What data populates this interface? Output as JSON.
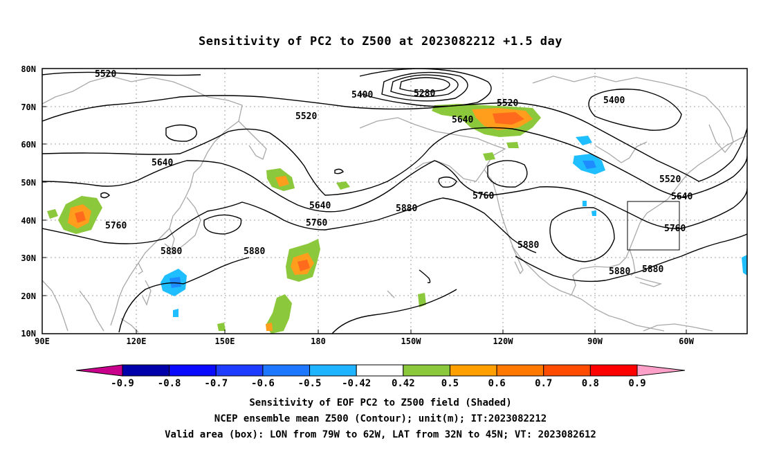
{
  "title": "Sensitivity of PC2 to Z500 at 2023082212 +1.5 day",
  "map": {
    "lat_ticks": [
      "80N",
      "70N",
      "60N",
      "50N",
      "40N",
      "30N",
      "20N",
      "10N"
    ],
    "lon_ticks": [
      "90E",
      "120E",
      "150E",
      "180",
      "150W",
      "120W",
      "90W",
      "60W"
    ],
    "contour_levels_shown": [
      "5280",
      "5400",
      "5520",
      "5640",
      "5760",
      "5880"
    ],
    "contour_labels": {
      "l5520a": "5520",
      "l5400a": "5400",
      "l5280": "5280",
      "l5520b": "5520",
      "l5520c": "5520",
      "l5400b": "5400",
      "l5640a": "5640",
      "l5640b": "5640",
      "l5760a": "5760",
      "l5640c": "5640",
      "l5760b": "5760",
      "l5880a": "5880",
      "l5760c": "5760",
      "l5520d": "5520",
      "l5640d": "5640",
      "l5760d": "5760",
      "l5880b": "5880",
      "l5880c": "5880",
      "l5880d": "5880",
      "l5880e": "5880",
      "l5880f": "5880"
    },
    "valid_box": {
      "lon_from": "79W",
      "lon_to": "62W",
      "lat_from": "32N",
      "lat_to": "45N"
    },
    "colors": {
      "land_outline": "#a8a8a8",
      "grid": "#a0a0a0",
      "contour": "#000000",
      "shade_pos_low": "#8cc83c",
      "shade_pos_mid": "#ff9e1c",
      "shade_pos_high": "#ff6a1c",
      "shade_neg": "#1ebeff",
      "shade_neg_strong": "#1e8cff"
    }
  },
  "colorbar": {
    "labels": [
      "-0.9",
      "-0.8",
      "-0.7",
      "-0.6",
      "-0.5",
      "-0.42",
      "0.42",
      "0.5",
      "0.6",
      "0.7",
      "0.8",
      "0.9"
    ],
    "colors": [
      "#0000aa",
      "#0a0aff",
      "#1e3cff",
      "#1e78ff",
      "#1eb4ff",
      "#ffffff",
      "#8cc83c",
      "#ffa000",
      "#ff7800",
      "#ff4c00",
      "#ff0000"
    ],
    "low_extend_color": "#c8008c",
    "high_extend_color": "#ffa0c8"
  },
  "footer": {
    "line1": "Sensitivity of EOF PC2 to Z500 field (Shaded)",
    "line2": "NCEP ensemble mean Z500 (Contour); unit(m); IT:2023082212",
    "line3": "Valid area (box): LON from 79W to 62W, LAT from 32N to 45N; VT: 2023082612"
  }
}
